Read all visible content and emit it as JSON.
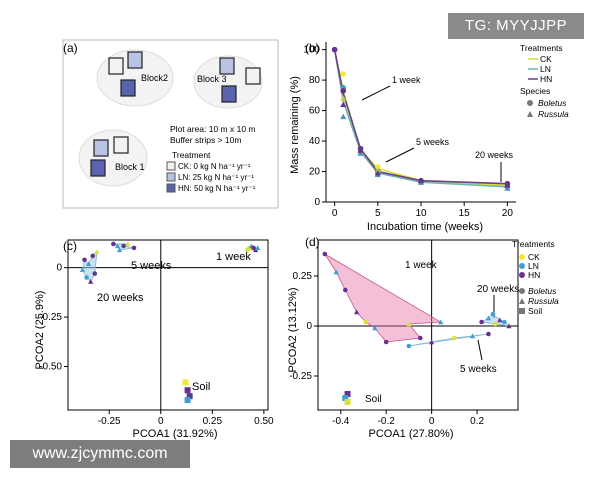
{
  "watermarks": {
    "top_right": "TG: MYYJJPP",
    "bottom_left": "www.zjcymmc.com"
  },
  "panel_a": {
    "label": "(a)",
    "blocks": [
      "Block2",
      "Block 3",
      "Block 1"
    ],
    "plot_area": "Plot area: 10 m x 10 m",
    "buffer": "Buffer strips > 10m",
    "treatment_title": "Treatment",
    "treatments": [
      {
        "name": "CK: 0 kg N ha⁻¹ yr⁻¹",
        "color": "#f2f2f2"
      },
      {
        "name": "LN: 25 kg N ha⁻¹ yr⁻¹",
        "color": "#b9c3e4"
      },
      {
        "name": "HN: 50 kg N ha⁻¹ yr⁻¹",
        "color": "#5a64ac"
      }
    ]
  },
  "chart_data": [
    {
      "type": "line",
      "label": "(b)",
      "xlabel": "Incubation time (weeks)",
      "ylabel": "Mass remaining (%)",
      "xlim": [
        -1,
        21
      ],
      "ylim": [
        0,
        105
      ],
      "xticks": [
        0,
        5,
        10,
        15,
        20
      ],
      "yticks": [
        0,
        20,
        40,
        60,
        80,
        100
      ],
      "x": [
        0,
        1,
        3,
        5,
        10,
        20
      ],
      "series": [
        {
          "name": "CK",
          "color": "#dede3a",
          "values": [
            100,
            73,
            34,
            22,
            14,
            11
          ]
        },
        {
          "name": "LN",
          "color": "#6fb8a8",
          "values": [
            100,
            66,
            33,
            19,
            13,
            10
          ]
        },
        {
          "name": "HN",
          "color": "#6b3f8f",
          "values": [
            100,
            71,
            35,
            20,
            14,
            12
          ]
        }
      ],
      "species_points": [
        {
          "series": "CK",
          "species": "Boletus",
          "color": "#f2e83a",
          "points": [
            [
              0,
              100
            ],
            [
              1,
              84
            ],
            [
              3,
              35
            ],
            [
              5,
              23
            ],
            [
              10,
              14
            ],
            [
              20,
              11
            ]
          ]
        },
        {
          "series": "LN",
          "species": "Boletus",
          "color": "#3f9fd0",
          "points": [
            [
              0,
              100
            ],
            [
              1,
              75
            ],
            [
              3,
              33
            ],
            [
              5,
              19
            ],
            [
              10,
              13
            ],
            [
              20,
              10
            ]
          ]
        },
        {
          "series": "HN",
          "species": "Boletus",
          "color": "#6b2f8f",
          "points": [
            [
              0,
              100
            ],
            [
              1,
              73
            ],
            [
              3,
              35
            ],
            [
              5,
              20
            ],
            [
              10,
              14
            ],
            [
              20,
              12
            ]
          ]
        },
        {
          "series": "CK",
          "species": "Russula",
          "color": "#c8c84a",
          "points": [
            [
              1,
              68
            ],
            [
              3,
              33
            ],
            [
              5,
              21
            ],
            [
              10,
              13
            ],
            [
              20,
              10
            ]
          ]
        },
        {
          "series": "LN",
          "species": "Russula",
          "color": "#4a8fc8",
          "points": [
            [
              1,
              56
            ],
            [
              3,
              32
            ],
            [
              5,
              18
            ],
            [
              10,
              13
            ],
            [
              20,
              9
            ]
          ]
        },
        {
          "series": "HN",
          "species": "Russula",
          "color": "#5a3c8a",
          "points": [
            [
              1,
              64
            ],
            [
              3,
              34
            ],
            [
              5,
              19
            ],
            [
              10,
              14
            ],
            [
              20,
              11
            ]
          ]
        }
      ],
      "annotations": [
        "1 week",
        "5 weeks",
        "20 weeks"
      ],
      "legend": {
        "treatments_title": "Treatments",
        "treatments": [
          "CK",
          "LN",
          "HN"
        ],
        "species_title": "Species",
        "species": [
          "Boletus",
          "Russula"
        ]
      }
    },
    {
      "type": "scatter",
      "label": "(c)",
      "xlabel": "PCOA1 (31.92%)",
      "ylabel": "PCOA2 (25.9%)",
      "xlim": [
        -0.45,
        0.52
      ],
      "ylim": [
        -0.72,
        0.14
      ],
      "xticks": [
        -0.25,
        0,
        0.25,
        0.5
      ],
      "xtick_labels": [
        "-0.25",
        "0",
        "0.25",
        "0.50"
      ],
      "yticks": [
        0,
        -0.25,
        -0.5
      ],
      "ytick_labels": [
        "0",
        "-0.25",
        "-0.50"
      ],
      "annotations": [
        "1 week",
        "5 weeks",
        "20 weeks",
        "Soil"
      ],
      "groups": [
        {
          "name": "1 week",
          "points": [
            [
              0.43,
              0.1,
              "#dede3a"
            ],
            [
              0.44,
              0.11,
              "#3f9fd0"
            ],
            [
              0.45,
              0.1,
              "#6b2f8f"
            ],
            [
              0.46,
              0.09,
              "#5a3c8a"
            ],
            [
              0.42,
              0.09,
              "#dede3a"
            ],
            [
              0.47,
              0.1,
              "#3f9fd0"
            ]
          ]
        },
        {
          "name": "5 weeks",
          "points": [
            [
              -0.23,
              0.12,
              "#6b2f8f"
            ],
            [
              -0.21,
              0.11,
              "#3f9fd0"
            ],
            [
              -0.18,
              0.11,
              "#5a3c8a"
            ],
            [
              -0.16,
              0.12,
              "#dede3a"
            ],
            [
              -0.13,
              0.1,
              "#6b2f8f"
            ],
            [
              -0.2,
              0.09,
              "#3f9fd0"
            ]
          ]
        },
        {
          "name": "20 weeks",
          "points": [
            [
              -0.37,
              0.04,
              "#6b2f8f"
            ],
            [
              -0.35,
              0.02,
              "#3f9fd0"
            ],
            [
              -0.33,
              0.06,
              "#5a3c8a"
            ],
            [
              -0.31,
              0.08,
              "#dede3a"
            ],
            [
              -0.36,
              -0.05,
              "#3f9fd0"
            ],
            [
              -0.34,
              -0.07,
              "#6b2f8f"
            ],
            [
              -0.32,
              -0.03,
              "#5a3c8a"
            ],
            [
              -0.38,
              -0.01,
              "#3f9fd0"
            ]
          ]
        },
        {
          "name": "Soil",
          "points": [
            [
              0.12,
              -0.58,
              "#f2e83a"
            ],
            [
              0.13,
              -0.62,
              "#6b2f8f"
            ],
            [
              0.14,
              -0.65,
              "#5a3c8a"
            ],
            [
              0.13,
              -0.67,
              "#3f9fd0"
            ]
          ]
        }
      ]
    },
    {
      "type": "scatter",
      "label": "(d)",
      "xlabel": "PCOA1 (27.80%)",
      "ylabel": "PCOA2 (13.12%)",
      "xlim": [
        -0.5,
        0.38
      ],
      "ylim": [
        -0.42,
        0.43
      ],
      "xticks": [
        -0.4,
        -0.2,
        0,
        0.2
      ],
      "xtick_labels": [
        "-0.4",
        "-0.2",
        "0",
        "0.2"
      ],
      "yticks": [
        0.25,
        0,
        -0.25
      ],
      "ytick_labels": [
        "0.25",
        "0",
        "-0.25"
      ],
      "annotations": [
        "1 week",
        "20 weeks",
        "5 weeks",
        "Soil"
      ],
      "legend": {
        "treatments_title": "Treatments",
        "treatments": [
          "CK",
          "LN",
          "HN"
        ],
        "species": [
          "Boletus",
          "Russula",
          "Soil"
        ]
      },
      "groups": [
        {
          "name": "1 week",
          "points": [
            [
              -0.47,
              0.36,
              "#6b2f8f"
            ],
            [
              -0.42,
              0.27,
              "#3f9fd0"
            ],
            [
              -0.38,
              0.18,
              "#6b2f8f"
            ],
            [
              -0.33,
              0.07,
              "#6b2f8f"
            ],
            [
              -0.29,
              0.02,
              "#dede3a"
            ],
            [
              -0.25,
              -0.01,
              "#3f9fd0"
            ],
            [
              -0.2,
              -0.08,
              "#6b2f8f"
            ],
            [
              -0.1,
              0.01,
              "#dede3a"
            ],
            [
              -0.05,
              -0.06,
              "#6b2f8f"
            ],
            [
              0.04,
              0.02,
              "#3f9fd0"
            ]
          ]
        },
        {
          "name": "5 weeks",
          "points": [
            [
              -0.1,
              -0.1,
              "#3f9fd0"
            ],
            [
              0.0,
              -0.08,
              "#6b2f8f"
            ],
            [
              0.1,
              -0.06,
              "#dede3a"
            ],
            [
              0.18,
              -0.05,
              "#3f9fd0"
            ],
            [
              0.25,
              -0.04,
              "#6b2f8f"
            ]
          ]
        },
        {
          "name": "20 weeks",
          "points": [
            [
              0.22,
              0.02,
              "#6b2f8f"
            ],
            [
              0.25,
              0.04,
              "#3f9fd0"
            ],
            [
              0.28,
              0.01,
              "#dede3a"
            ],
            [
              0.3,
              0.03,
              "#6b2f8f"
            ],
            [
              0.32,
              0.02,
              "#3f9fd0"
            ],
            [
              0.34,
              0.0,
              "#6b2f8f"
            ],
            [
              0.27,
              0.06,
              "#3f9fd0"
            ]
          ]
        },
        {
          "name": "Soil",
          "points": [
            [
              -0.37,
              -0.34,
              "#6b2f8f"
            ],
            [
              -0.38,
              -0.36,
              "#3f9fd0"
            ],
            [
              -0.37,
              -0.38,
              "#dede3a"
            ]
          ]
        }
      ]
    }
  ]
}
